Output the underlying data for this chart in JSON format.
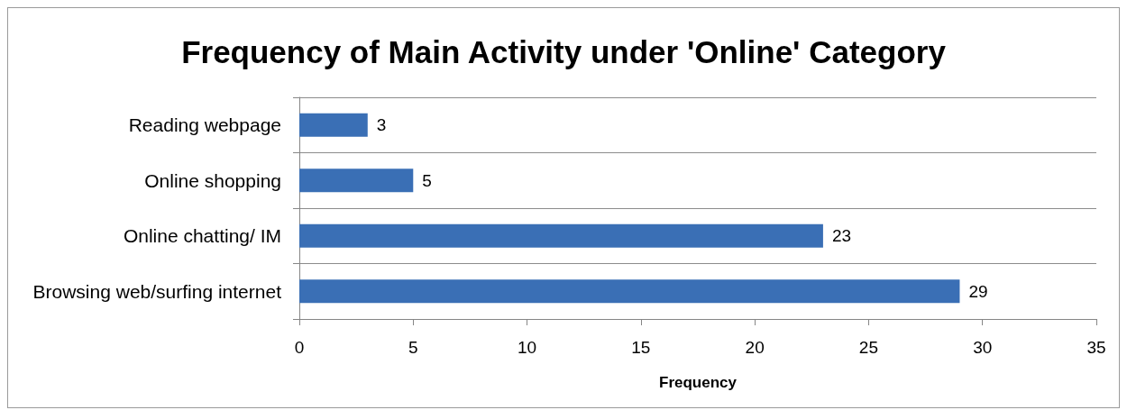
{
  "chart_data": {
    "type": "bar",
    "orientation": "horizontal",
    "title": "Frequency of Main Activity under 'Online' Category",
    "xlabel": "Frequency",
    "categories": [
      "Reading webpage",
      "Online shopping",
      "Online chatting/ IM",
      "Browsing web/surfing internet"
    ],
    "values": [
      3,
      5,
      23,
      29
    ],
    "color": "#3a6fb5",
    "data_labels": true,
    "xlim": [
      0,
      35
    ],
    "xticks": [
      0,
      5,
      10,
      15,
      20,
      25,
      30,
      35
    ],
    "grid": "y"
  }
}
